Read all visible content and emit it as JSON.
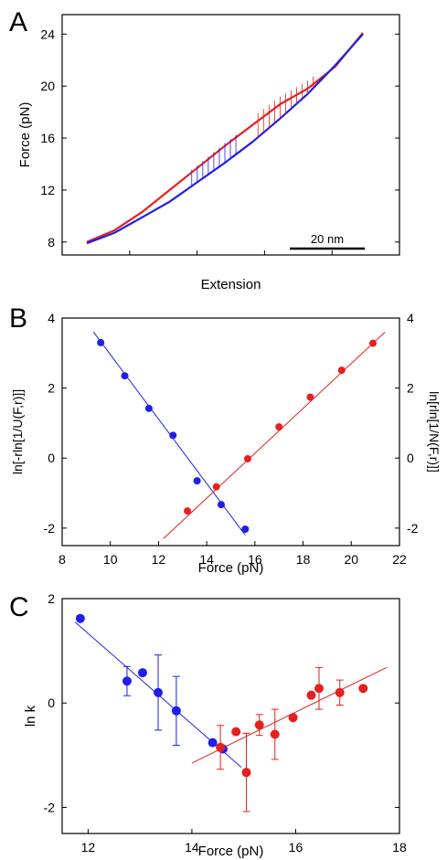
{
  "colors": {
    "blue": "#1f1fe6",
    "red": "#e61f1f",
    "axis": "#000000"
  },
  "panels": [
    {
      "letter": "A"
    },
    {
      "letter": "B"
    },
    {
      "letter": "C"
    }
  ],
  "chart_data": [
    {
      "id": "A",
      "type": "line",
      "xlabel": "Extension",
      "ylabel": "Force (pN)",
      "ylim": [
        7,
        25.5
      ],
      "xlim": [
        0,
        100
      ],
      "yticks": [
        8,
        12,
        16,
        20,
        24
      ],
      "x_tick_labels_shown": false,
      "scalebar_label": "20 nm",
      "series": [
        {
          "color": "red",
          "x": [
            0,
            10,
            20,
            30,
            40,
            50,
            60,
            70,
            80,
            90,
            100
          ],
          "y": [
            8.0,
            8.9,
            10.3,
            12.0,
            13.7,
            15.4,
            17.0,
            18.6,
            19.8,
            21.5,
            24.1
          ]
        },
        {
          "color": "blue",
          "x": [
            0,
            10,
            20,
            30,
            40,
            50,
            60,
            70,
            80,
            90,
            100
          ],
          "y": [
            7.9,
            8.7,
            9.9,
            11.1,
            12.6,
            14.1,
            15.7,
            17.5,
            19.4,
            21.6,
            24.0
          ]
        }
      ]
    },
    {
      "id": "B",
      "type": "scatter",
      "xlabel": "Force (pN)",
      "ylabel": "ln[-rln[1/U(F,r)]]",
      "ylabel_right": "ln[rln[1/N(F,r)]]",
      "xlim": [
        8,
        22
      ],
      "ylim": [
        -2.5,
        4
      ],
      "xticks": [
        8,
        10,
        12,
        14,
        16,
        18,
        20,
        22
      ],
      "yticks": [
        -2,
        0,
        2,
        4
      ],
      "series": [
        {
          "color": "blue",
          "x": [
            9.6,
            10.6,
            11.6,
            12.6,
            13.6,
            14.6,
            15.6
          ],
          "y": [
            3.3,
            2.35,
            1.42,
            0.65,
            -0.65,
            -1.33,
            -2.03
          ],
          "fit_x": [
            9.3,
            15.6
          ],
          "fit_y": [
            3.6,
            -2.2
          ]
        },
        {
          "color": "red",
          "x": [
            13.2,
            14.4,
            15.7,
            17.0,
            18.3,
            19.6,
            20.9
          ],
          "y": [
            -1.51,
            -0.82,
            -0.02,
            0.89,
            1.74,
            2.51,
            3.28
          ],
          "fit_x": [
            12.2,
            21.4
          ],
          "fit_y": [
            -2.3,
            3.6
          ]
        }
      ]
    },
    {
      "id": "C",
      "type": "scatter",
      "xlabel": "Force (pN)",
      "ylabel": "ln k",
      "xlim": [
        11.5,
        18
      ],
      "ylim": [
        -2.5,
        2
      ],
      "xticks": [
        12,
        14,
        16,
        18
      ],
      "yticks": [
        -2,
        0,
        2
      ],
      "series": [
        {
          "color": "blue",
          "x": [
            11.85,
            12.75,
            13.05,
            13.35,
            13.7,
            14.4,
            14.6
          ],
          "y": [
            1.62,
            0.42,
            0.58,
            0.2,
            -0.15,
            -0.76,
            -0.88
          ],
          "err": [
            0,
            0.28,
            0,
            0.72,
            0.66,
            0,
            0
          ],
          "fit_x": [
            11.75,
            14.95
          ],
          "fit_y": [
            1.55,
            -1.23
          ]
        },
        {
          "color": "red",
          "x": [
            14.55,
            14.85,
            15.05,
            15.3,
            15.6,
            15.95,
            16.3,
            16.45,
            16.85,
            17.3
          ],
          "y": [
            -0.85,
            -0.55,
            -1.33,
            -0.42,
            -0.6,
            -0.28,
            0.15,
            0.28,
            0.2,
            0.28
          ],
          "err": [
            0.42,
            0,
            0.75,
            0.2,
            0.48,
            0,
            0,
            0.4,
            0.24,
            0
          ],
          "fit_x": [
            14.0,
            17.75
          ],
          "fit_y": [
            -1.15,
            0.68
          ]
        }
      ]
    }
  ]
}
